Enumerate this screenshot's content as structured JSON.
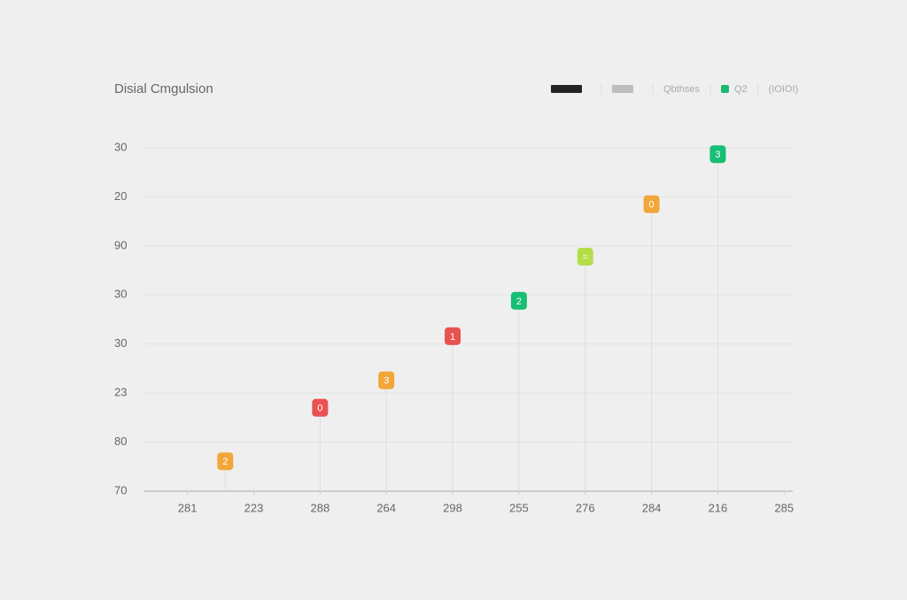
{
  "chart_data": {
    "type": "scatter",
    "title": "Disial Cmgulsion",
    "legend": [
      {
        "swatch": "#222222"
      },
      {
        "swatch": "#bdbdbd"
      },
      {
        "label": "Qbthses"
      },
      {
        "swatch": "#1db872",
        "label": "Q2"
      },
      {
        "label": "(IOIOI)"
      }
    ],
    "x": [
      0.57,
      2,
      3,
      4,
      5,
      6,
      7,
      8
    ],
    "values": [
      0.61,
      1.7,
      2.26,
      3.16,
      3.88,
      4.78,
      5.85,
      6.87
    ],
    "badges": [
      "2",
      "0",
      "3",
      "1",
      "2",
      "=",
      "0",
      "3"
    ],
    "colors": [
      "#f2a63a",
      "#e9534f",
      "#f2a63a",
      "#e9534f",
      "#17be74",
      "#b5dd4a",
      "#f2a63a",
      "#17be74"
    ],
    "xlim": [
      -0.65,
      9.13
    ],
    "xticks": [
      {
        "value": 0,
        "label": "281"
      },
      {
        "value": 1,
        "label": "223"
      },
      {
        "value": 2,
        "label": "288"
      },
      {
        "value": 3,
        "label": "264"
      },
      {
        "value": 4,
        "label": "298"
      },
      {
        "value": 5,
        "label": "255"
      },
      {
        "value": 6,
        "label": "276"
      },
      {
        "value": 7,
        "label": "284"
      },
      {
        "value": 8,
        "label": "216"
      },
      {
        "value": 9,
        "label": "285"
      }
    ],
    "ylim": [
      0,
      7
    ],
    "yticks": [
      {
        "value": 0,
        "label": "70"
      },
      {
        "value": 1,
        "label": "80"
      },
      {
        "value": 2,
        "label": "23"
      },
      {
        "value": 3,
        "label": "30"
      },
      {
        "value": 4,
        "label": "30"
      },
      {
        "value": 5,
        "label": "90"
      },
      {
        "value": 6,
        "label": "20"
      },
      {
        "value": 7,
        "label": "30"
      }
    ],
    "grid": true
  }
}
